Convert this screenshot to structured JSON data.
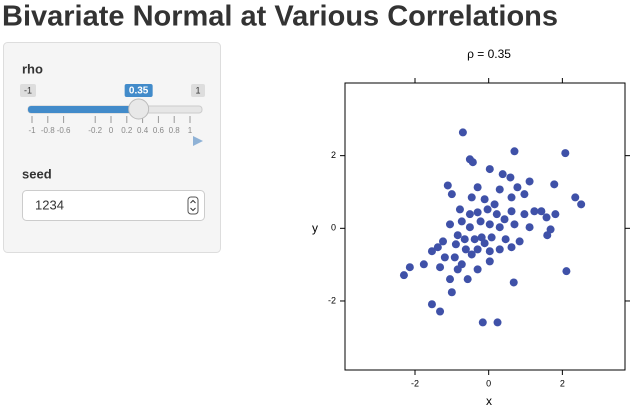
{
  "page": {
    "title": "Bivariate Normal at Various Correlations"
  },
  "sidebar": {
    "rho": {
      "label": "rho",
      "min": -1,
      "max": 1,
      "value": 0.35,
      "ticks": [
        -1,
        -0.8,
        -0.6,
        -0.2,
        0,
        0.2,
        0.4,
        0.6,
        0.8,
        1
      ]
    },
    "seed": {
      "label": "seed",
      "value": 1234
    }
  },
  "chart_data": {
    "type": "scatter",
    "title": "ρ = 0.35",
    "x_label": "x",
    "y_label": "y",
    "color": "#3f51a8",
    "xlim": [
      -3.9,
      3.7
    ],
    "ylim": [
      -3.9,
      4.0
    ],
    "xticks": [
      -2,
      0,
      2
    ],
    "yticks": [
      -2,
      0,
      2
    ],
    "x": [
      -0.7,
      0.7,
      2.08,
      -0.51,
      -0.43,
      0.03,
      0.38,
      0.59,
      1.11,
      1.78,
      0.78,
      -1.11,
      -1,
      -0.3,
      0.3,
      -0.46,
      -0.11,
      0.16,
      0.62,
      0.97,
      1.24,
      1.43,
      0.97,
      0.62,
      2.35,
      2.51,
      1.81,
      1.57,
      1.68,
      1.59,
      -0.78,
      -0.51,
      -0.3,
      -0.03,
      0.22,
      0.43,
      -0.22,
      -0.73,
      -1.05,
      -0.51,
      0.03,
      0.3,
      -0.84,
      -1.24,
      -1.38,
      -0.65,
      -0.38,
      -0.19,
      0.08,
      0.46,
      0.84,
      0.62,
      0.3,
      0.03,
      -0.3,
      -0.46,
      -0.92,
      -1.19,
      -1.54,
      -0.73,
      -0.3,
      0.03,
      -0.84,
      -1.32,
      -1.76,
      -2.14,
      -2.3,
      -1.05,
      -0.57,
      0.68,
      2.11,
      -1,
      -1.54,
      -1.32,
      -0.16,
      0.24,
      -0.89,
      -0.62,
      -0.11,
      1.11,
      0.7
    ],
    "y": [
      2.64,
      2.12,
      2.07,
      1.9,
      1.82,
      1.63,
      1.49,
      1.4,
      1.29,
      1.21,
      1.13,
      1.18,
      0.94,
      1.13,
      1.07,
      0.85,
      0.8,
      0.66,
      0.85,
      0.94,
      0.47,
      0.47,
      0.39,
      0.47,
      0.85,
      0.66,
      0.39,
      0.3,
      -0.03,
      -0.19,
      0.52,
      0.39,
      0.44,
      0.52,
      0.39,
      0.25,
      0.19,
      0.19,
      0.11,
      0.03,
      0.11,
      0.03,
      -0.19,
      -0.36,
      -0.52,
      -0.3,
      -0.3,
      -0.25,
      -0.25,
      -0.3,
      -0.36,
      -0.52,
      -0.58,
      -0.63,
      -0.58,
      -0.72,
      -0.8,
      -0.8,
      -0.63,
      -0.99,
      -1.13,
      -0.91,
      -1.13,
      -1.07,
      -0.99,
      -1.07,
      -1.29,
      -1.4,
      -1.4,
      -1.49,
      -1.18,
      -1.76,
      -2.09,
      -2.29,
      -2.59,
      -2.59,
      -0.44,
      -0.58,
      -0.41,
      0.03,
      0.11
    ]
  }
}
